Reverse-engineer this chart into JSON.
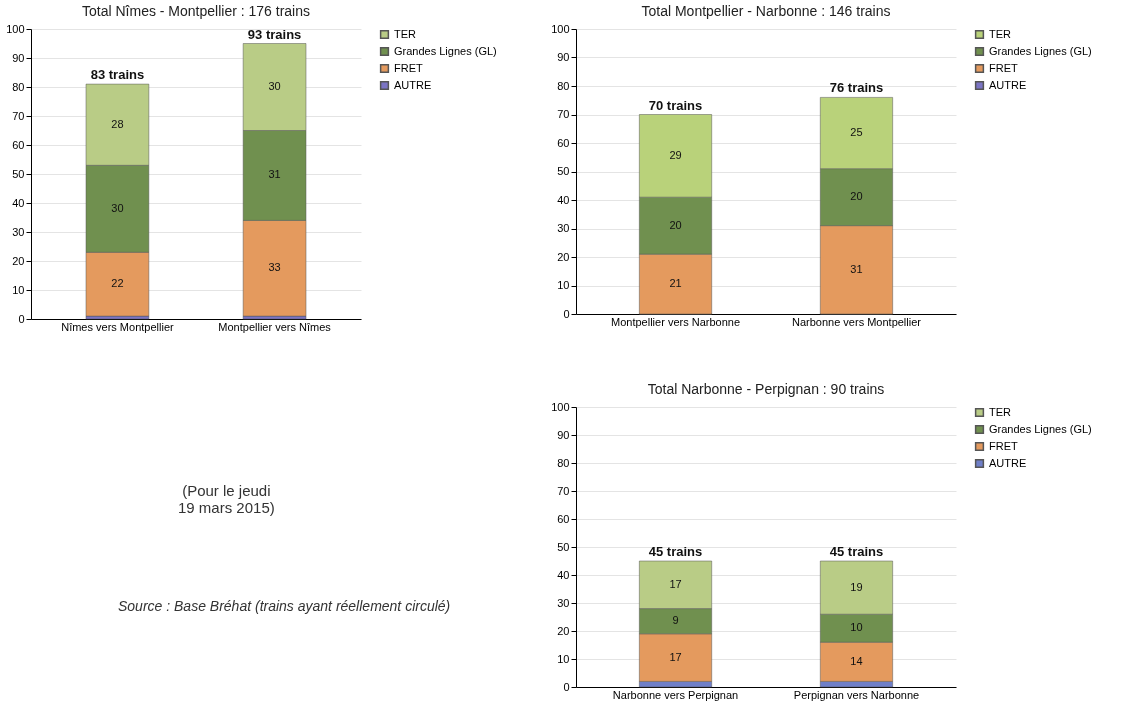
{
  "chart_data": [
    {
      "type": "bar",
      "title": "Total Nîmes - Montpellier : 176 trains",
      "categories": [
        "Nîmes vers Montpellier",
        "Montpellier vers Nîmes"
      ],
      "stacked": true,
      "series": [
        {
          "name": "AUTRE",
          "color": "#7b74c4",
          "values": [
            1,
            1
          ],
          "value_labels": [
            null,
            null
          ]
        },
        {
          "name": "FRET",
          "color": "#e49a5e",
          "values": [
            22,
            33
          ],
          "value_labels": [
            "22",
            "33"
          ]
        },
        {
          "name": "Grandes Lignes (GL)",
          "color": "#70904f",
          "values": [
            30,
            31
          ],
          "value_labels": [
            "30",
            "31"
          ]
        },
        {
          "name": "TER",
          "color": "#b9cc86",
          "values": [
            28,
            30
          ],
          "value_labels": [
            "28",
            "30"
          ]
        }
      ],
      "totals": [
        "83 trains",
        "93 trains"
      ],
      "ylim": [
        0,
        100
      ],
      "yticks": [
        0,
        10,
        20,
        30,
        40,
        50,
        60,
        70,
        80,
        90,
        100
      ],
      "grid": "y",
      "legend": "right",
      "annotations": [
        "(Pour le jeudi\n19 mars 2015)",
        "Source : Base Bréhat (trains ayant réellement circulé)"
      ]
    },
    {
      "type": "bar",
      "title": "Total Montpellier - Narbonne : 146 trains",
      "categories": [
        "Montpellier vers Narbonne",
        "Narbonne vers Montpellier"
      ],
      "stacked": true,
      "series": [
        {
          "name": "AUTRE",
          "color": "#7b74c4",
          "values": [
            0,
            0
          ],
          "value_labels": [
            null,
            null
          ]
        },
        {
          "name": "FRET",
          "color": "#e49a5e",
          "values": [
            21,
            31
          ],
          "value_labels": [
            "21",
            "31"
          ]
        },
        {
          "name": "Grandes Lignes (GL)",
          "color": "#70904f",
          "values": [
            20,
            20
          ],
          "value_labels": [
            "20",
            "20"
          ]
        },
        {
          "name": "TER",
          "color": "#b9d27a",
          "values": [
            29,
            25
          ],
          "value_labels": [
            "29",
            "25"
          ]
        }
      ],
      "totals": [
        "70 trains",
        "76 trains"
      ],
      "ylim": [
        0,
        100
      ],
      "yticks": [
        0,
        10,
        20,
        30,
        40,
        50,
        60,
        70,
        80,
        90,
        100
      ],
      "grid": "y",
      "legend": "right"
    },
    {
      "type": "bar",
      "title": "Total Narbonne - Perpignan : 90 trains",
      "categories": [
        "Narbonne vers Perpignan",
        "Perpignan vers Narbonne"
      ],
      "stacked": true,
      "series": [
        {
          "name": "AUTRE",
          "color": "#6f7fc8",
          "values": [
            2,
            2
          ],
          "value_labels": [
            null,
            null
          ]
        },
        {
          "name": "FRET",
          "color": "#e49a5e",
          "values": [
            17,
            14
          ],
          "value_labels": [
            "17",
            "14"
          ]
        },
        {
          "name": "Grandes Lignes (GL)",
          "color": "#70904f",
          "values": [
            9,
            10
          ],
          "value_labels": [
            "9",
            "10"
          ]
        },
        {
          "name": "TER",
          "color": "#b9cc86",
          "values": [
            17,
            19
          ],
          "value_labels": [
            "17",
            "19"
          ]
        }
      ],
      "totals": [
        "45 trains",
        "45 trains"
      ],
      "ylim": [
        0,
        100
      ],
      "yticks": [
        0,
        10,
        20,
        30,
        40,
        50,
        60,
        70,
        80,
        90,
        100
      ],
      "grid": "y",
      "legend": "right"
    }
  ]
}
